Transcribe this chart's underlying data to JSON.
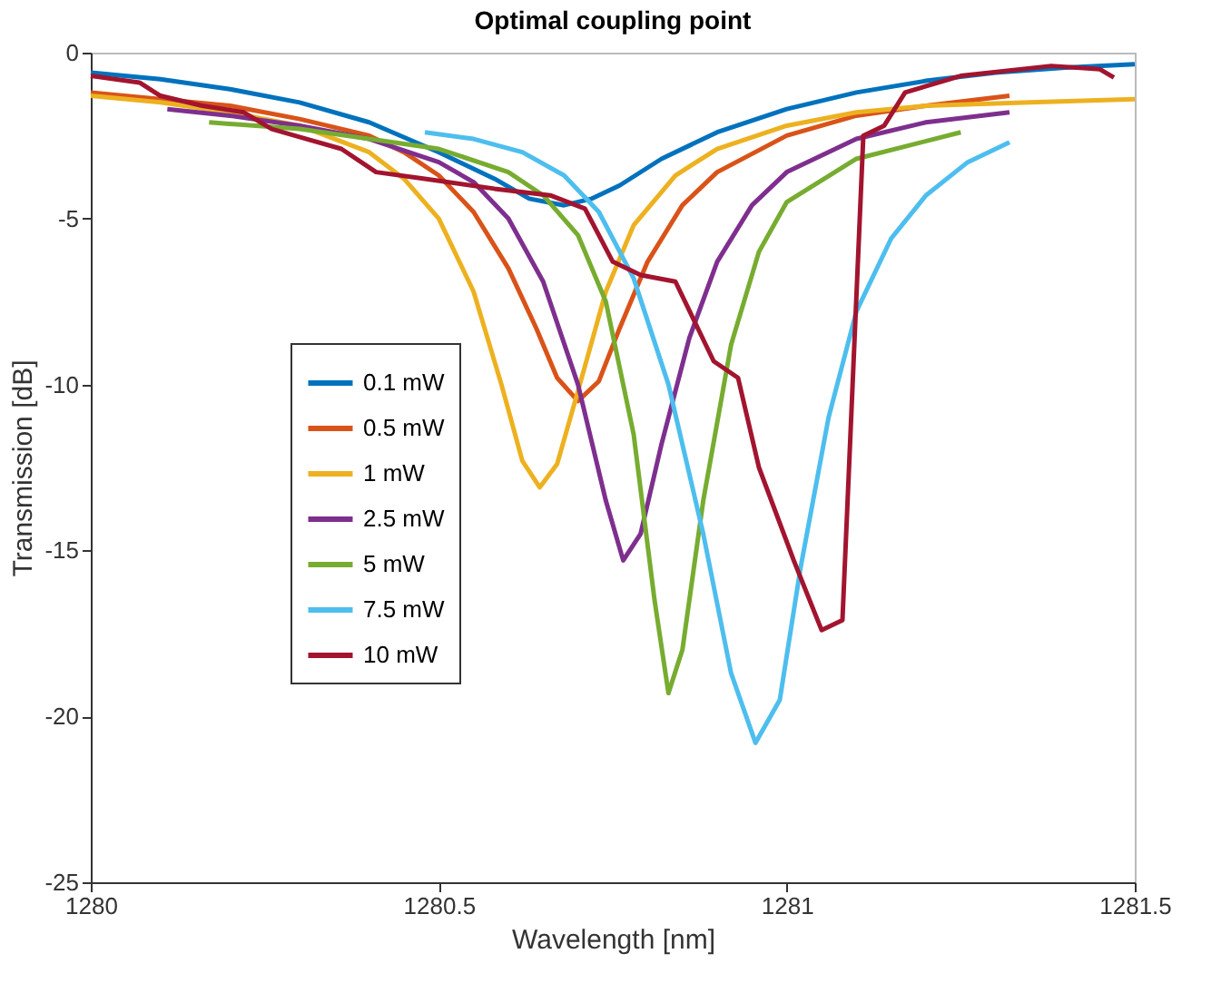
{
  "chart_data": {
    "type": "line",
    "title": "Optimal coupling point",
    "xlabel": "Wavelength [nm]",
    "ylabel": "Transmission [dB]",
    "xlim": [
      1280,
      1281.5
    ],
    "xticks": [
      1280,
      1280.5,
      1281,
      1281.5
    ],
    "ylim": [
      -25,
      0
    ],
    "yticks": [
      -25,
      -20,
      -15,
      -10,
      -5,
      0
    ],
    "grid": false,
    "legend": "bottom left",
    "line_style": "solid",
    "marker": "none",
    "series": [
      {
        "name": "0.1 mW",
        "color": "#0072bd",
        "x": [
          1280,
          1280.1,
          1280.2,
          1280.3,
          1280.4,
          1280.5,
          1280.58,
          1280.63,
          1280.68,
          1280.72,
          1280.76,
          1280.82,
          1280.9,
          1281.0,
          1281.1,
          1281.2,
          1281.3,
          1281.4,
          1281.5
        ],
        "values": [
          -0.6,
          -0.8,
          -1.1,
          -1.5,
          -2.1,
          -3.0,
          -3.8,
          -4.4,
          -4.6,
          -4.4,
          -4.0,
          -3.2,
          -2.4,
          -1.7,
          -1.2,
          -0.85,
          -0.6,
          -0.45,
          -0.35
        ]
      },
      {
        "name": "0.5 mW",
        "color": "#d95319",
        "x": [
          1280,
          1280.1,
          1280.2,
          1280.3,
          1280.4,
          1280.45,
          1280.5,
          1280.55,
          1280.6,
          1280.64,
          1280.67,
          1280.7,
          1280.73,
          1280.76,
          1280.8,
          1280.85,
          1280.9,
          1281.0,
          1281.1,
          1281.2,
          1281.32
        ],
        "values": [
          -1.2,
          -1.4,
          -1.6,
          -2.0,
          -2.5,
          -3.0,
          -3.7,
          -4.8,
          -6.5,
          -8.3,
          -9.8,
          -10.5,
          -9.9,
          -8.3,
          -6.3,
          -4.6,
          -3.6,
          -2.5,
          -1.9,
          -1.6,
          -1.3
        ]
      },
      {
        "name": "1 mW",
        "color": "#edb120",
        "x": [
          1280,
          1280.1,
          1280.2,
          1280.3,
          1280.4,
          1280.45,
          1280.5,
          1280.55,
          1280.59,
          1280.62,
          1280.645,
          1280.67,
          1280.7,
          1280.74,
          1280.78,
          1280.84,
          1280.9,
          1281.0,
          1281.1,
          1281.2,
          1281.35,
          1281.5
        ],
        "values": [
          -1.3,
          -1.5,
          -1.8,
          -2.2,
          -3.0,
          -3.8,
          -5.0,
          -7.2,
          -10.0,
          -12.3,
          -13.1,
          -12.4,
          -10.2,
          -7.2,
          -5.2,
          -3.7,
          -2.9,
          -2.2,
          -1.8,
          -1.6,
          -1.5,
          -1.4
        ]
      },
      {
        "name": "2.5 mW",
        "color": "#7e2f8e",
        "x": [
          1280.11,
          1280.2,
          1280.3,
          1280.4,
          1280.5,
          1280.55,
          1280.6,
          1280.65,
          1280.7,
          1280.74,
          1280.765,
          1280.79,
          1280.82,
          1280.86,
          1280.9,
          1280.95,
          1281.0,
          1281.1,
          1281.2,
          1281.32
        ],
        "values": [
          -1.7,
          -1.9,
          -2.2,
          -2.6,
          -3.3,
          -3.9,
          -5.0,
          -6.9,
          -10.0,
          -13.5,
          -15.3,
          -14.5,
          -11.8,
          -8.6,
          -6.3,
          -4.6,
          -3.6,
          -2.6,
          -2.1,
          -1.8
        ]
      },
      {
        "name": "5 mW",
        "color": "#77ac30",
        "x": [
          1280.17,
          1280.3,
          1280.4,
          1280.5,
          1280.6,
          1280.65,
          1280.7,
          1280.74,
          1280.78,
          1280.81,
          1280.83,
          1280.85,
          1280.88,
          1280.92,
          1280.96,
          1281.0,
          1281.1,
          1281.25
        ],
        "values": [
          -2.1,
          -2.3,
          -2.6,
          -2.9,
          -3.6,
          -4.3,
          -5.5,
          -7.5,
          -11.5,
          -16.5,
          -19.3,
          -18.0,
          -13.5,
          -8.8,
          -6.0,
          -4.5,
          -3.2,
          -2.4
        ]
      },
      {
        "name": "7.5 mW",
        "color": "#4dbeee",
        "x": [
          1280.48,
          1280.55,
          1280.62,
          1280.68,
          1280.73,
          1280.78,
          1280.83,
          1280.88,
          1280.92,
          1280.955,
          1280.99,
          1281.02,
          1281.06,
          1281.1,
          1281.15,
          1281.2,
          1281.26,
          1281.32
        ],
        "values": [
          -2.4,
          -2.6,
          -3.0,
          -3.7,
          -4.8,
          -6.8,
          -10.0,
          -14.5,
          -18.7,
          -20.8,
          -19.5,
          -15.5,
          -11.0,
          -7.8,
          -5.6,
          -4.3,
          -3.3,
          -2.7
        ]
      },
      {
        "name": "10 mW",
        "color": "#a2142f",
        "x": [
          1280,
          1280.07,
          1280.1,
          1280.16,
          1280.22,
          1280.26,
          1280.31,
          1280.36,
          1280.41,
          1280.48,
          1280.58,
          1280.66,
          1280.71,
          1280.75,
          1280.79,
          1280.84,
          1280.895,
          1280.93,
          1280.96,
          1281.01,
          1281.05,
          1281.08,
          1281.11,
          1281.14,
          1281.17,
          1281.25,
          1281.38,
          1281.45,
          1281.47
        ],
        "values": [
          -0.7,
          -0.9,
          -1.3,
          -1.6,
          -1.8,
          -2.3,
          -2.6,
          -2.9,
          -3.6,
          -3.8,
          -4.1,
          -4.3,
          -4.7,
          -6.3,
          -6.7,
          -6.9,
          -9.3,
          -9.8,
          -12.5,
          -15.3,
          -17.4,
          -17.1,
          -2.5,
          -2.2,
          -1.2,
          -0.7,
          -0.4,
          -0.5,
          -0.75
        ]
      }
    ]
  }
}
